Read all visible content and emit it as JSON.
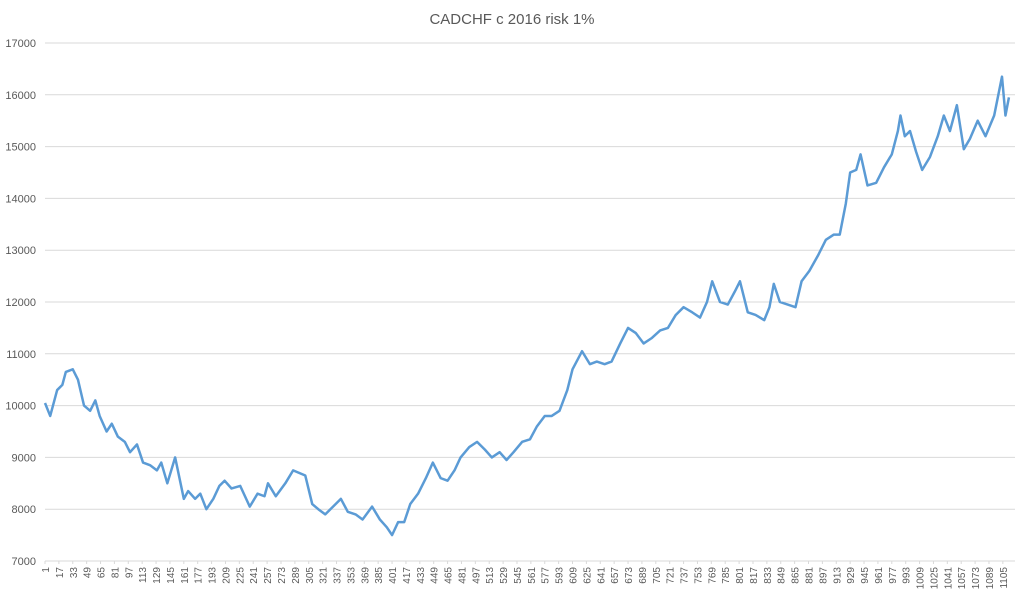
{
  "chart_data": {
    "type": "line",
    "title": "CADCHF c 2016 risk 1%",
    "x": [
      1,
      7,
      15,
      21,
      25,
      33,
      39,
      46,
      53,
      59,
      64,
      72,
      78,
      85,
      93,
      99,
      107,
      114,
      122,
      130,
      135,
      142,
      151,
      161,
      166,
      174,
      180,
      187,
      195,
      202,
      208,
      216,
      226,
      237,
      246,
      254,
      258,
      267,
      278,
      287,
      301,
      309,
      316,
      324,
      333,
      342,
      350,
      359,
      367,
      378,
      387,
      395,
      401,
      408,
      415,
      422,
      431,
      440,
      448,
      457,
      465,
      473,
      480,
      490,
      499,
      508,
      516,
      525,
      533,
      541,
      551,
      560,
      568,
      577,
      585,
      594,
      603,
      609,
      620,
      629,
      637,
      646,
      654,
      664,
      673,
      682,
      691,
      700,
      710,
      719,
      728,
      737,
      747,
      756,
      764,
      770,
      779,
      788,
      796,
      802,
      811,
      820,
      830,
      836,
      841,
      848,
      857,
      866,
      873,
      882,
      892,
      901,
      910,
      917,
      924,
      929,
      936,
      941,
      949,
      959,
      968,
      977,
      984,
      987,
      992,
      998,
      1005,
      1012,
      1021,
      1030,
      1037,
      1044,
      1052,
      1060,
      1067,
      1076,
      1085,
      1095,
      1104,
      1108,
      1112
    ],
    "series": [
      {
        "name": null,
        "color": "#5b9bd5",
        "values": [
          10050,
          9800,
          10300,
          10400,
          10650,
          10700,
          10500,
          10000,
          9900,
          10100,
          9800,
          9500,
          9650,
          9400,
          9300,
          9100,
          9250,
          8900,
          8850,
          8750,
          8900,
          8500,
          9000,
          8200,
          8350,
          8200,
          8300,
          8000,
          8200,
          8450,
          8550,
          8400,
          8450,
          8050,
          8300,
          8250,
          8500,
          8250,
          8500,
          8750,
          8650,
          8100,
          8000,
          7900,
          8050,
          8200,
          7950,
          7900,
          7800,
          8050,
          7800,
          7650,
          7500,
          7750,
          7750,
          8100,
          8300,
          8600,
          8900,
          8600,
          8550,
          8750,
          9000,
          9200,
          9300,
          9150,
          9000,
          9100,
          8950,
          9100,
          9300,
          9350,
          9600,
          9800,
          9800,
          9900,
          10300,
          10700,
          11050,
          10800,
          10850,
          10800,
          10850,
          11200,
          11500,
          11400,
          11200,
          11300,
          11450,
          11500,
          11750,
          11900,
          11800,
          11700,
          12000,
          12400,
          12000,
          11950,
          12200,
          12400,
          11800,
          11750,
          11650,
          11900,
          12350,
          12000,
          11950,
          11900,
          12400,
          12600,
          12900,
          13200,
          13300,
          13300,
          13900,
          14500,
          14550,
          14850,
          14250,
          14300,
          14600,
          14850,
          15300,
          15600,
          15200,
          15300,
          14900,
          14550,
          14800,
          15200,
          15600,
          15300,
          15800,
          14950,
          15150,
          15500,
          15200,
          15600,
          16350,
          15600,
          15950
        ]
      }
    ],
    "xlim": [
      1,
      1119
    ],
    "xticks": [
      1,
      17,
      33,
      49,
      65,
      81,
      97,
      113,
      129,
      145,
      161,
      177,
      193,
      209,
      225,
      241,
      257,
      273,
      289,
      305,
      321,
      337,
      353,
      369,
      385,
      401,
      417,
      433,
      449,
      465,
      481,
      497,
      513,
      529,
      545,
      561,
      577,
      593,
      609,
      625,
      641,
      657,
      673,
      689,
      705,
      721,
      737,
      753,
      769,
      785,
      801,
      817,
      833,
      849,
      865,
      881,
      897,
      913,
      929,
      945,
      961,
      977,
      993,
      1009,
      1025,
      1041,
      1057,
      1073,
      1089,
      1105
    ],
    "ylim": [
      7000,
      17000
    ],
    "yticks": [
      7000,
      8000,
      9000,
      10000,
      11000,
      12000,
      13000,
      14000,
      15000,
      16000,
      17000
    ],
    "grid": true
  }
}
